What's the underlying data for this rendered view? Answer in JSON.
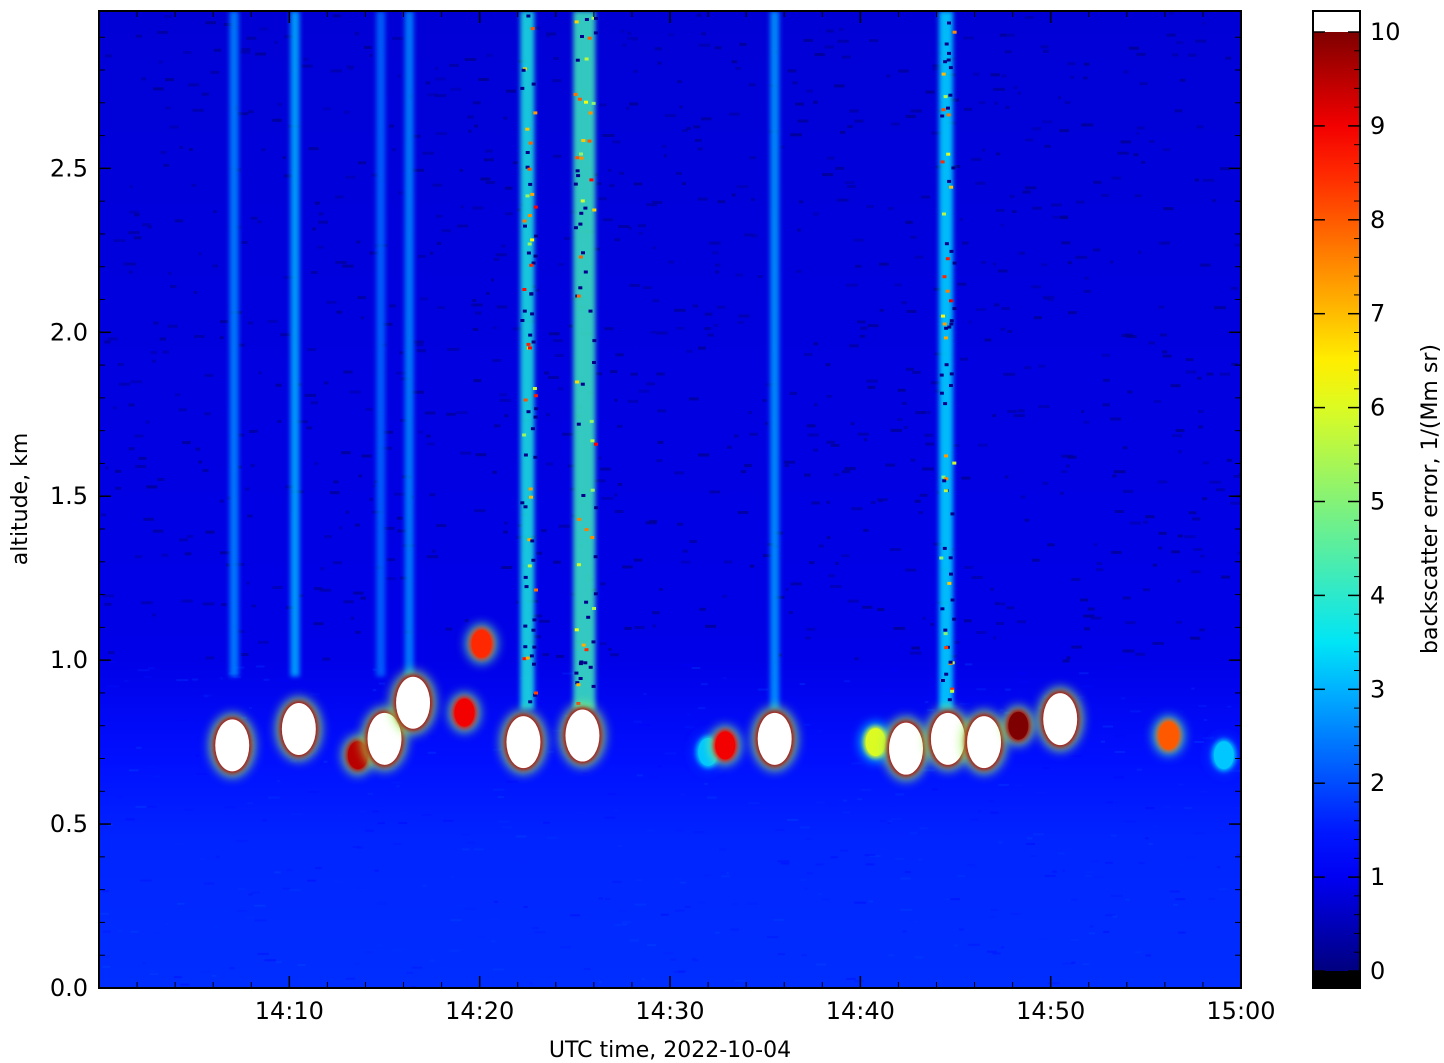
{
  "chart_data": {
    "type": "heatmap",
    "title": "",
    "xlabel": "UTC time,  2022-10-04",
    "ylabel": "altitude, km",
    "colorbar_label": "backscatter error, 1/(Mm sr)",
    "colormap": "jet",
    "over_color": "#ffffff",
    "under_color": "#000000",
    "x_range_minutes": [
      60,
      120
    ],
    "x_ticks": [
      {
        "minute": 70,
        "label": "14:10"
      },
      {
        "minute": 80,
        "label": "14:20"
      },
      {
        "minute": 90,
        "label": "14:30"
      },
      {
        "minute": 100,
        "label": "14:40"
      },
      {
        "minute": 110,
        "label": "14:50"
      },
      {
        "minute": 120,
        "label": "15:00"
      }
    ],
    "ylim": [
      0,
      2.98
    ],
    "y_ticks": [
      {
        "value": 0.0,
        "label": "0.0"
      },
      {
        "value": 0.5,
        "label": "0.5"
      },
      {
        "value": 1.0,
        "label": "1.0"
      },
      {
        "value": 1.5,
        "label": "1.5"
      },
      {
        "value": 2.0,
        "label": "2.0"
      },
      {
        "value": 2.5,
        "label": "2.5"
      }
    ],
    "color_range": [
      0,
      10
    ],
    "colorbar_ticks": [
      {
        "value": 0,
        "label": "0"
      },
      {
        "value": 1,
        "label": "1"
      },
      {
        "value": 2,
        "label": "2"
      },
      {
        "value": 3,
        "label": "3"
      },
      {
        "value": 4,
        "label": "4"
      },
      {
        "value": 5,
        "label": "5"
      },
      {
        "value": 6,
        "label": "6"
      },
      {
        "value": 7,
        "label": "7"
      },
      {
        "value": 8,
        "label": "8"
      },
      {
        "value": 9,
        "label": "9"
      },
      {
        "value": 10,
        "label": "10"
      }
    ],
    "background_levels": [
      {
        "altitude_km": 0.0,
        "value": 1.7
      },
      {
        "altitude_km": 0.45,
        "value": 1.6
      },
      {
        "altitude_km": 0.7,
        "value": 1.4
      },
      {
        "altitude_km": 1.0,
        "value": 0.9
      },
      {
        "altitude_km": 2.98,
        "value": 0.75
      }
    ],
    "streaks": [
      {
        "minute": 67.1,
        "altitude_km": [
          0.95,
          2.98
        ],
        "value": 2.6
      },
      {
        "minute": 70.3,
        "altitude_km": [
          0.95,
          2.98
        ],
        "value": 3.0
      },
      {
        "minute": 74.8,
        "altitude_km": [
          0.95,
          2.98
        ],
        "value": 2.3
      },
      {
        "minute": 76.3,
        "altitude_km": [
          0.95,
          2.98
        ],
        "value": 2.6
      },
      {
        "minute": 82.5,
        "altitude_km": [
          0.85,
          2.98
        ],
        "value": 3.8
      },
      {
        "minute": 85.5,
        "altitude_km": [
          0.85,
          2.98
        ],
        "value": 4.2
      },
      {
        "minute": 95.5,
        "altitude_km": [
          0.85,
          2.98
        ],
        "value": 2.8
      },
      {
        "minute": 104.5,
        "altitude_km": [
          0.85,
          2.98
        ],
        "value": 3.4
      }
    ],
    "cloud_patches": [
      {
        "minute": 67.0,
        "altitude_km": 0.74,
        "value": 10.5
      },
      {
        "minute": 70.5,
        "altitude_km": 0.79,
        "value": 10.5
      },
      {
        "minute": 73.6,
        "altitude_km": 0.71,
        "value": 9.5
      },
      {
        "minute": 75.0,
        "altitude_km": 0.76,
        "value": 10.2
      },
      {
        "minute": 76.5,
        "altitude_km": 0.87,
        "value": 10.5
      },
      {
        "minute": 79.2,
        "altitude_km": 0.84,
        "value": 9.0
      },
      {
        "minute": 80.1,
        "altitude_km": 1.05,
        "value": 8.5
      },
      {
        "minute": 82.3,
        "altitude_km": 0.75,
        "value": 10.5
      },
      {
        "minute": 85.4,
        "altitude_km": 0.77,
        "value": 10.5
      },
      {
        "minute": 92.0,
        "altitude_km": 0.72,
        "value": 3.2
      },
      {
        "minute": 92.9,
        "altitude_km": 0.74,
        "value": 9.0
      },
      {
        "minute": 95.5,
        "altitude_km": 0.76,
        "value": 10.5
      },
      {
        "minute": 100.8,
        "altitude_km": 0.75,
        "value": 6.0
      },
      {
        "minute": 102.4,
        "altitude_km": 0.73,
        "value": 10.5
      },
      {
        "minute": 104.6,
        "altitude_km": 0.76,
        "value": 10.5
      },
      {
        "minute": 106.5,
        "altitude_km": 0.75,
        "value": 10.2
      },
      {
        "minute": 108.3,
        "altitude_km": 0.8,
        "value": 10.0
      },
      {
        "minute": 110.5,
        "altitude_km": 0.82,
        "value": 10.5
      },
      {
        "minute": 116.2,
        "altitude_km": 0.77,
        "value": 8.0
      },
      {
        "minute": 119.1,
        "altitude_km": 0.71,
        "value": 3.2
      }
    ]
  }
}
